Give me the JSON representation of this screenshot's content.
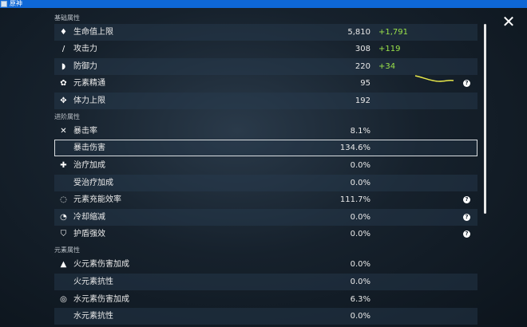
{
  "window": {
    "title": "原神"
  },
  "sections": {
    "base": "基础属性",
    "advanced": "进阶属性",
    "elemental": "元素属性"
  },
  "rows": [
    {
      "icon": "hp-drop-icon",
      "glyph": "♦",
      "label": "生命值上限",
      "value": "5,810",
      "bonus": "+1,791"
    },
    {
      "icon": "sword-icon",
      "glyph": "/",
      "label": "攻击力",
      "value": "308",
      "bonus": "+119"
    },
    {
      "icon": "shield-icon",
      "glyph": "◗",
      "label": "防御力",
      "value": "220",
      "bonus": "+34"
    },
    {
      "icon": "elemental-mastery-icon",
      "glyph": "✿",
      "label": "元素精通",
      "value": "95",
      "bonus": ""
    },
    {
      "icon": "stamina-icon",
      "glyph": "✥",
      "label": "体力上限",
      "value": "192",
      "bonus": ""
    },
    {
      "icon": "crit-rate-icon",
      "glyph": "✕",
      "label": "暴击率",
      "value": "8.1%",
      "bonus": ""
    },
    {
      "icon": "",
      "glyph": "",
      "label": "暴击伤害",
      "value": "134.6%",
      "bonus": ""
    },
    {
      "icon": "healing-cross-icon",
      "glyph": "✚",
      "label": "治疗加成",
      "value": "0.0%",
      "bonus": ""
    },
    {
      "icon": "",
      "glyph": "",
      "label": "受治疗加成",
      "value": "0.0%",
      "bonus": ""
    },
    {
      "icon": "energy-recharge-icon",
      "glyph": "◌",
      "label": "元素充能效率",
      "value": "111.7%",
      "bonus": ""
    },
    {
      "icon": "cooldown-icon",
      "glyph": "◔",
      "label": "冷却缩减",
      "value": "0.0%",
      "bonus": ""
    },
    {
      "icon": "shield-strength-icon",
      "glyph": "⛉",
      "label": "护盾强效",
      "value": "0.0%",
      "bonus": ""
    },
    {
      "icon": "pyro-icon",
      "glyph": "▲",
      "label": "火元素伤害加成",
      "value": "0.0%",
      "bonus": ""
    },
    {
      "icon": "",
      "glyph": "",
      "label": "火元素抗性",
      "value": "0.0%",
      "bonus": ""
    },
    {
      "icon": "hydro-icon",
      "glyph": "◎",
      "label": "水元素伤害加成",
      "value": "6.3%",
      "bonus": ""
    },
    {
      "icon": "",
      "glyph": "",
      "label": "水元素抗性",
      "value": "0.0%",
      "bonus": ""
    }
  ],
  "help_glyph": "?",
  "close_glyph": "✕",
  "colors": {
    "bonus": "#9be34a",
    "titlebar": "#0e67d6",
    "accent_line": "#e8e84a"
  }
}
